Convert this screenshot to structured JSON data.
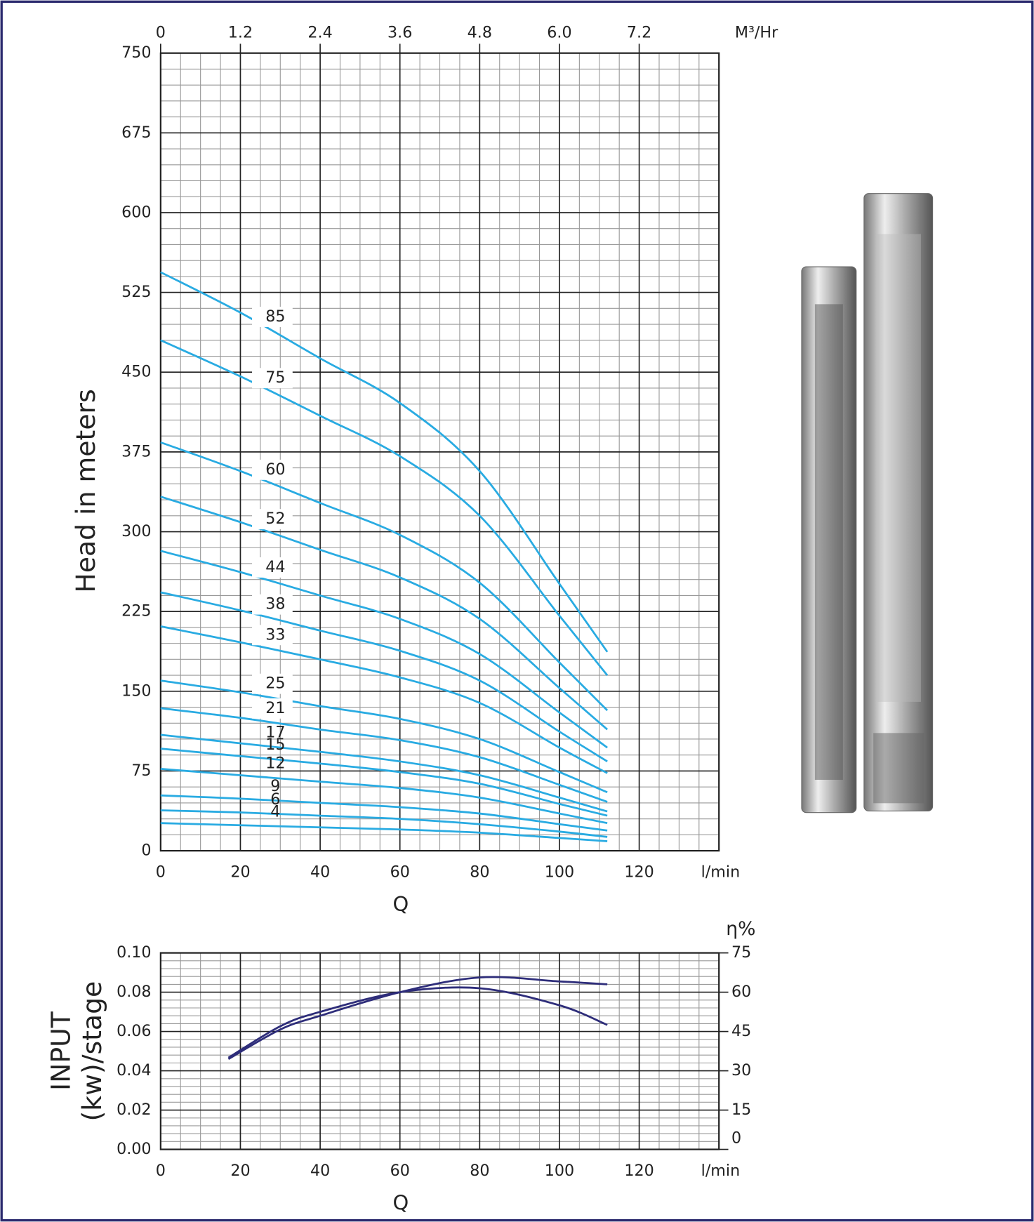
{
  "chart_data": [
    {
      "type": "line",
      "y_label": "Head in meters",
      "x_label": "Q",
      "x_unit_label": "l/min",
      "x2_unit_label": "M³/Hr",
      "xlim": [
        0,
        140
      ],
      "xticks": [
        0,
        20,
        40,
        60,
        80,
        100,
        120
      ],
      "x2lim": [
        0,
        8.4
      ],
      "x2ticks": [
        0,
        1.2,
        2.4,
        3.6,
        4.8,
        {
          "value": 6.0,
          "label": "6.0"
        },
        7.2
      ],
      "ylim": [
        0,
        750
      ],
      "yticks": [
        0,
        75,
        150,
        225,
        300,
        375,
        450,
        525,
        600,
        675,
        750
      ],
      "grid": true,
      "color": "#29abe2",
      "x": [
        0,
        20,
        40,
        60,
        80,
        100,
        112
      ],
      "series": [
        {
          "name": "85",
          "values": [
            544,
            506,
            463,
            421,
            357,
            251,
            187
          ]
        },
        {
          "name": "75",
          "values": [
            480,
            446,
            409,
            371,
            315,
            221,
            165
          ]
        },
        {
          "name": "60",
          "values": [
            384,
            357,
            327,
            297,
            252,
            177,
            132
          ]
        },
        {
          "name": "52",
          "values": [
            333,
            309,
            283,
            257,
            218,
            153,
            114
          ]
        },
        {
          "name": "44",
          "values": [
            282,
            262,
            240,
            218,
            185,
            130,
            97
          ]
        },
        {
          "name": "38",
          "values": [
            243,
            226,
            207,
            188,
            160,
            112,
            84
          ]
        },
        {
          "name": "33",
          "values": [
            211,
            196,
            180,
            163,
            139,
            97,
            73
          ]
        },
        {
          "name": "25",
          "values": [
            160,
            149,
            136,
            124,
            105,
            74,
            55
          ]
        },
        {
          "name": "21",
          "values": [
            134,
            125,
            114,
            104,
            88,
            62,
            46
          ]
        },
        {
          "name": "17",
          "values": [
            109,
            101,
            93,
            84,
            71,
            50,
            37
          ]
        },
        {
          "name": "15",
          "values": [
            96,
            89,
            82,
            74,
            63,
            44,
            33
          ]
        },
        {
          "name": "12",
          "values": [
            77,
            71,
            65,
            59,
            50,
            35,
            26
          ]
        },
        {
          "name": "9",
          "values": [
            52,
            49,
            45,
            41,
            35,
            25,
            19
          ]
        },
        {
          "name": "6",
          "values": [
            38,
            36,
            33,
            30,
            25,
            18,
            13
          ]
        },
        {
          "name": "4",
          "values": [
            26,
            24,
            22,
            20,
            17,
            12,
            9
          ]
        }
      ]
    },
    {
      "type": "line",
      "y_label": [
        "INPUT",
        "(kw)/stage"
      ],
      "y2_label": "η%",
      "x_label": "Q",
      "x_unit_label": "l/min",
      "xlim": [
        0,
        140
      ],
      "xticks": [
        0,
        20,
        40,
        60,
        80,
        100,
        120
      ],
      "ylim": [
        0,
        0.1
      ],
      "yticks": [
        {
          "value": 0,
          "label": "0.00"
        },
        0.02,
        0.04,
        0.06,
        0.08,
        {
          "value": 0.1,
          "label": "0.10"
        }
      ],
      "y2lim": [
        0,
        75
      ],
      "y2ticks": [
        0,
        15,
        30,
        45,
        60,
        75
      ],
      "grid": true,
      "color": "#2e2d7a",
      "x": [
        17,
        30,
        40,
        60,
        80,
        100,
        112
      ],
      "series": [
        {
          "values": [
            0.046,
            0.061,
            0.068,
            0.08,
            0.0875,
            0.0855,
            0.084
          ]
        },
        {
          "axis": "y2",
          "values": [
            35,
            47,
            52.5,
            60,
            61.5,
            55,
            47.5
          ]
        }
      ]
    }
  ]
}
